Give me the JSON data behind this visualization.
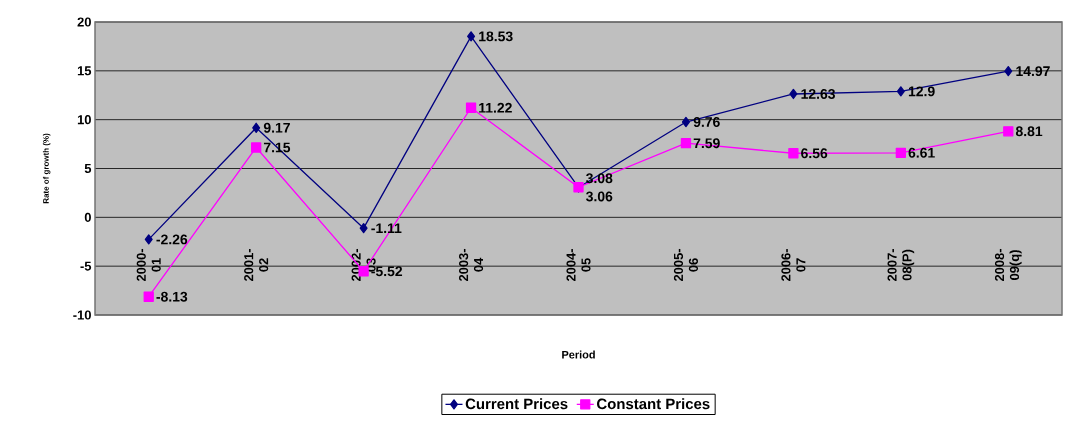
{
  "chart_data": {
    "type": "line",
    "xlabel": "Period",
    "ylabel": "Rate of growth (%)",
    "categories": [
      "2000-01",
      "2001-02",
      "2002-03",
      "2003-04",
      "2004-05",
      "2005-06",
      "2006-07",
      "2007-08(P)",
      "2008-09(q)"
    ],
    "series": [
      {
        "name": "Current Prices",
        "color": "#000080",
        "marker": "diamond",
        "values": [
          -2.26,
          9.17,
          -1.11,
          18.53,
          3.06,
          9.76,
          12.63,
          12.9,
          14.97
        ]
      },
      {
        "name": "Constant Prices",
        "color": "#ff00ff",
        "marker": "square",
        "values": [
          -8.13,
          7.15,
          -5.52,
          11.22,
          3.08,
          7.59,
          6.56,
          6.61,
          8.81
        ]
      }
    ],
    "ylim": [
      -10,
      20
    ],
    "yticks": [
      -10,
      -5,
      0,
      5,
      10,
      15,
      20
    ],
    "grid": "y",
    "legend": "bottom",
    "data_labels": true,
    "line_style": "solid"
  }
}
